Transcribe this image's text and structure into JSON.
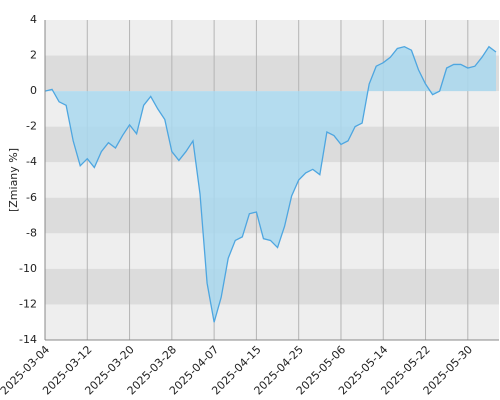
{
  "chart_data": {
    "type": "area",
    "y_label": "[Zmiany %]",
    "categories": [
      "2025-03-04",
      null,
      null,
      null,
      null,
      null,
      "2025-03-12",
      null,
      null,
      null,
      null,
      null,
      "2025-03-20",
      null,
      null,
      null,
      null,
      null,
      "2025-03-28",
      null,
      null,
      null,
      null,
      null,
      "2025-04-07",
      null,
      null,
      null,
      null,
      null,
      "2025-04-15",
      null,
      null,
      null,
      null,
      null,
      "2025-04-25",
      null,
      null,
      null,
      null,
      null,
      "2025-05-06",
      null,
      null,
      null,
      null,
      null,
      "2025-05-14",
      null,
      null,
      null,
      null,
      null,
      "2025-05-22",
      null,
      null,
      null,
      null,
      null,
      "2025-05-30",
      null,
      null,
      null,
      null
    ],
    "values": [
      0,
      0.1,
      -0.6,
      -0.8,
      -2.8,
      -4.2,
      -3.8,
      -4.3,
      -3.4,
      -2.9,
      -3.2,
      -2.5,
      -1.9,
      -2.4,
      -0.8,
      -0.3,
      -1.0,
      -1.6,
      -3.4,
      -3.9,
      -3.4,
      -2.8,
      -5.8,
      -10.8,
      -13.0,
      -11.6,
      -9.4,
      -8.4,
      -8.2,
      -6.9,
      -6.8,
      -8.3,
      -8.4,
      -8.8,
      -7.6,
      -5.9,
      -5.0,
      -4.6,
      -4.4,
      -4.7,
      -2.3,
      -2.5,
      -3.0,
      -2.8,
      -2.0,
      -1.8,
      0.4,
      1.4,
      1.6,
      1.9,
      2.4,
      2.5,
      2.3,
      1.2,
      0.4,
      -0.2,
      0.0,
      1.3,
      1.5,
      1.5,
      1.3,
      1.4,
      1.9,
      2.5,
      2.2
    ],
    "color": "#4ea6e0",
    "fill_color": "#a9d8ee",
    "band_colors": [
      "#eeeeee",
      "#dcdcdc"
    ],
    "ylim": [
      -14,
      4
    ],
    "yticks": [
      4,
      2,
      0,
      -2,
      -4,
      -6,
      -8,
      -10,
      -12,
      -14
    ],
    "grid": true
  }
}
